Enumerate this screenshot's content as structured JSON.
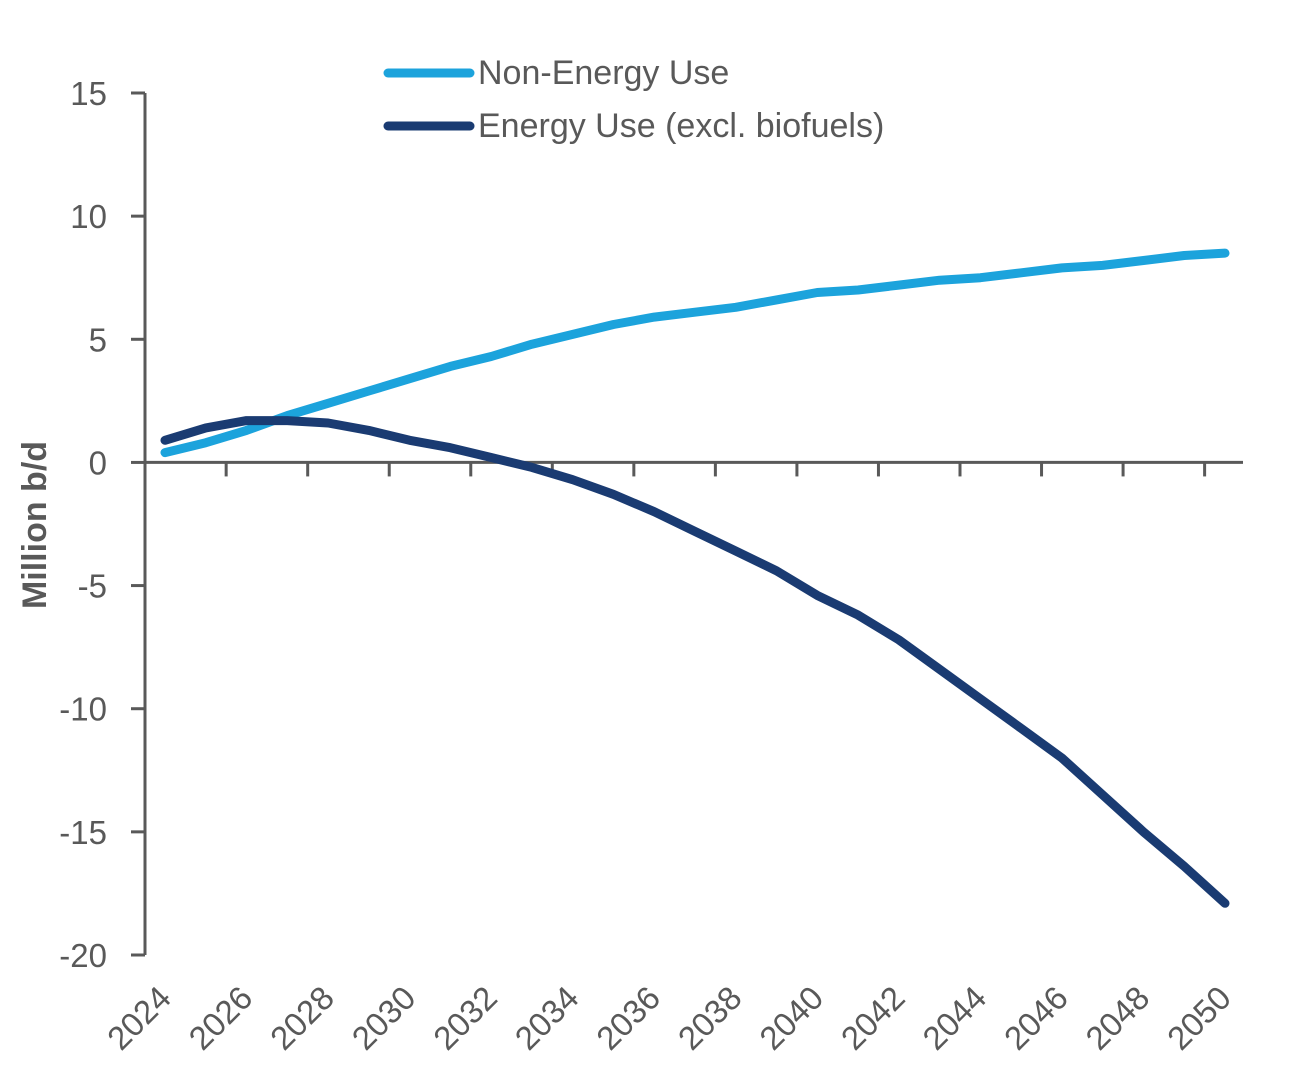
{
  "chart_data": {
    "type": "line",
    "title": "",
    "xlabel": "",
    "ylabel": "Million b/d",
    "ylim": [
      -20,
      15
    ],
    "yticks": [
      "15",
      "10",
      "5",
      "0",
      "-5",
      "-10",
      "-15",
      "-20"
    ],
    "ytick_values": [
      15,
      10,
      5,
      0,
      -5,
      -10,
      -15,
      -20
    ],
    "xlim": [
      2024,
      2050
    ],
    "xticks": [
      "2024",
      "2026",
      "2028",
      "2030",
      "2032",
      "2034",
      "2036",
      "2038",
      "2040",
      "2042",
      "2044",
      "2046",
      "2048",
      "2050"
    ],
    "xtick_values": [
      2024,
      2026,
      2028,
      2030,
      2032,
      2034,
      2036,
      2038,
      2040,
      2042,
      2044,
      2046,
      2048,
      2050
    ],
    "grid": false,
    "legend_position": "top",
    "x": [
      2024,
      2025,
      2026,
      2027,
      2028,
      2029,
      2030,
      2031,
      2032,
      2033,
      2034,
      2035,
      2036,
      2037,
      2038,
      2039,
      2040,
      2041,
      2042,
      2043,
      2044,
      2045,
      2046,
      2047,
      2048,
      2049,
      2050
    ],
    "series": [
      {
        "name": "Non-Energy Use",
        "color": "#1ca3dc",
        "values": [
          0.4,
          0.8,
          1.3,
          1.9,
          2.4,
          2.9,
          3.4,
          3.9,
          4.3,
          4.8,
          5.2,
          5.6,
          5.9,
          6.1,
          6.3,
          6.6,
          6.9,
          7.0,
          7.2,
          7.4,
          7.5,
          7.7,
          7.9,
          8.0,
          8.2,
          8.4,
          8.5
        ]
      },
      {
        "name": "Energy Use (excl. biofuels)",
        "color": "#1a3b72",
        "values": [
          0.9,
          1.4,
          1.7,
          1.7,
          1.6,
          1.3,
          0.9,
          0.6,
          0.2,
          -0.2,
          -0.7,
          -1.3,
          -2.0,
          -2.8,
          -3.6,
          -4.4,
          -5.4,
          -6.2,
          -7.2,
          -8.4,
          -9.6,
          -10.8,
          -12.0,
          -13.5,
          -15.0,
          -16.4,
          -17.9
        ]
      }
    ]
  }
}
